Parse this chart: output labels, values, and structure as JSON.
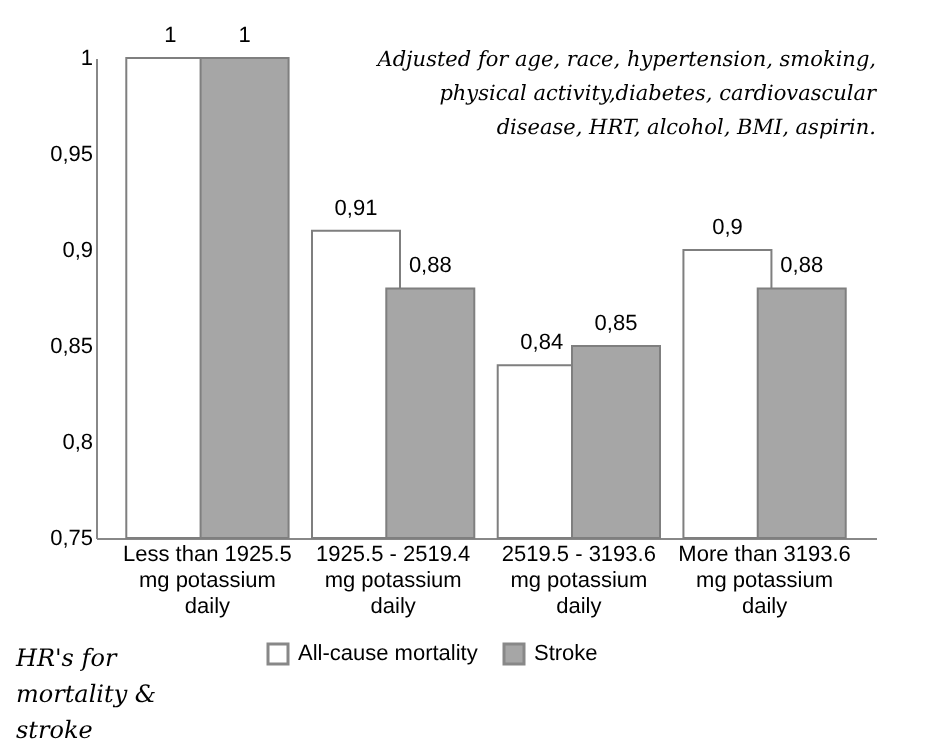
{
  "chart_data": {
    "type": "bar",
    "ylabel": "HR's for mortality & stroke",
    "categories": [
      "Less than 1925.5 mg potassium daily",
      "1925.5 - 2519.4 mg potassium daily",
      "2519.5 - 3193.6 mg potassium daily",
      "More than 3193.6 mg potassium daily"
    ],
    "series": [
      {
        "name": "All-cause mortality",
        "color": "#ffffff",
        "values": [
          1,
          0.91,
          0.84,
          0.9
        ],
        "value_labels": [
          "1",
          "0,91",
          "0,84",
          "0,9"
        ]
      },
      {
        "name": "Stroke",
        "color": "#a6a6a6",
        "values": [
          1,
          0.88,
          0.85,
          0.88
        ],
        "value_labels": [
          "1",
          "0,88",
          "0,85",
          "0,88"
        ]
      }
    ],
    "ylim": [
      0.75,
      1.0
    ],
    "yticks": [
      {
        "value": 0.75,
        "label": "0,75"
      },
      {
        "value": 0.8,
        "label": "0,8"
      },
      {
        "value": 0.85,
        "label": "0,85"
      },
      {
        "value": 0.9,
        "label": "0,9"
      },
      {
        "value": 0.95,
        "label": "0,95"
      },
      {
        "value": 1.0,
        "label": "1"
      }
    ],
    "annotations": [
      "Adjusted for age, race, hypertension, smoking, physical activity,diabetes, cardiovascular disease, HRT, alcohol, BMI, aspirin."
    ],
    "legend": "bottom",
    "grid": false
  }
}
